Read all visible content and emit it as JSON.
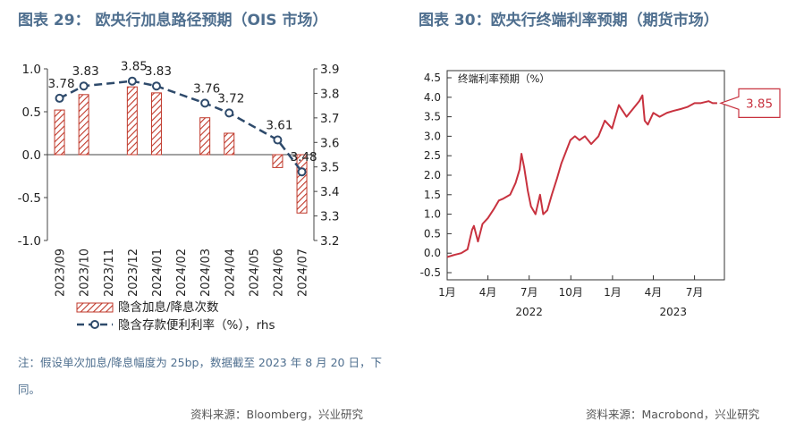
{
  "left": {
    "title": "图表 29： 欧央行加息路径预期（OIS 市场）",
    "note": "注：假设单次加息/降息幅度为 25bp，数据截至 2023 年 8 月 20 日，下同。",
    "source": "资料来源：Bloomberg，兴业研究",
    "chart_data": {
      "type": "bar+line",
      "categories": [
        "2023/09",
        "2023/10",
        "2023/11",
        "2023/12",
        "2024/01",
        "2024/02",
        "2024/03",
        "2024/04",
        "2024/05",
        "2024/06",
        "2024/07"
      ],
      "series": [
        {
          "name": "隐含加息/降息次数",
          "type": "bar",
          "axis": "left",
          "values": [
            0.52,
            0.7,
            0.0,
            0.79,
            0.72,
            0.0,
            0.43,
            0.25,
            0.0,
            -0.15,
            -0.68
          ]
        },
        {
          "name": "隐含存款便利利率（%），rhs",
          "type": "line",
          "axis": "right",
          "x": [
            "2023/09",
            "2023/10",
            "2023/12",
            "2024/01",
            "2024/03",
            "2024/04",
            "2024/06",
            "2024/07"
          ],
          "values": [
            3.78,
            3.83,
            3.85,
            3.83,
            3.76,
            3.72,
            3.61,
            3.48
          ],
          "labels": [
            "3.78",
            "3.83",
            "3.85",
            "3.83",
            "3.76",
            "3.72",
            "3.61",
            "3.48"
          ]
        }
      ],
      "y_left": {
        "lim": [
          -1.0,
          1.0
        ],
        "ticks": [
          "1.0",
          "0.5",
          "0.0",
          "-0.5",
          "-1.0"
        ]
      },
      "y_right": {
        "lim": [
          3.2,
          3.9
        ],
        "ticks": [
          "3.9",
          "3.8",
          "3.7",
          "3.6",
          "3.5",
          "3.4",
          "3.3",
          "3.2"
        ]
      },
      "legend_position": "bottom",
      "colors": {
        "bar": "#c0392b",
        "line": "#2e4a6b"
      }
    }
  },
  "right": {
    "title": "图表 30：欧央行终端利率预期（期货市场）",
    "source": "资料来源：Macrobond，兴业研究",
    "chart_data": {
      "type": "line",
      "ylabel": "终端利率预期（%）",
      "ylim": [
        -0.5,
        4.5
      ],
      "yticks": [
        "4.5",
        "4.0",
        "3.5",
        "3.0",
        "2.5",
        "2.0",
        "1.5",
        "1.0",
        "0.5",
        "0.0",
        "-0.5"
      ],
      "xticks": [
        "1月",
        "4月",
        "7月",
        "10月",
        "1月",
        "4月",
        "7月"
      ],
      "year_labels": [
        "2022",
        "2023"
      ],
      "last_value_label": "3.85",
      "series": [
        {
          "name": "",
          "x": [
            "2022-01-01",
            "2022-01-15",
            "2022-02-01",
            "2022-02-15",
            "2022-02-25",
            "2022-03-01",
            "2022-03-10",
            "2022-03-20",
            "2022-04-01",
            "2022-04-15",
            "2022-04-25",
            "2022-05-05",
            "2022-05-20",
            "2022-06-01",
            "2022-06-10",
            "2022-06-14",
            "2022-06-20",
            "2022-06-28",
            "2022-07-05",
            "2022-07-15",
            "2022-07-25",
            "2022-08-01",
            "2022-08-10",
            "2022-08-20",
            "2022-08-31",
            "2022-09-10",
            "2022-09-20",
            "2022-09-30",
            "2022-10-10",
            "2022-10-20",
            "2022-11-01",
            "2022-11-15",
            "2022-12-01",
            "2022-12-15",
            "2022-12-31",
            "2023-01-15",
            "2023-02-01",
            "2023-02-15",
            "2023-03-01",
            "2023-03-08",
            "2023-03-13",
            "2023-03-20",
            "2023-04-01",
            "2023-04-15",
            "2023-05-01",
            "2023-05-15",
            "2023-06-01",
            "2023-06-15",
            "2023-07-01",
            "2023-07-15",
            "2023-08-01",
            "2023-08-10",
            "2023-08-20"
          ],
          "values": [
            -0.1,
            -0.05,
            0.0,
            0.1,
            0.6,
            0.7,
            0.3,
            0.75,
            0.9,
            1.15,
            1.35,
            1.4,
            1.5,
            1.8,
            2.15,
            2.55,
            2.2,
            1.6,
            1.2,
            1.0,
            1.5,
            1.0,
            1.1,
            1.5,
            1.9,
            2.3,
            2.6,
            2.9,
            3.0,
            2.9,
            3.0,
            2.8,
            3.0,
            3.4,
            3.2,
            3.8,
            3.5,
            3.7,
            3.9,
            4.05,
            3.4,
            3.3,
            3.6,
            3.5,
            3.6,
            3.65,
            3.7,
            3.75,
            3.85,
            3.85,
            3.9,
            3.85,
            3.85
          ]
        }
      ],
      "colors": {
        "line": "#c8323f",
        "label_border": "#c8323f"
      }
    }
  }
}
